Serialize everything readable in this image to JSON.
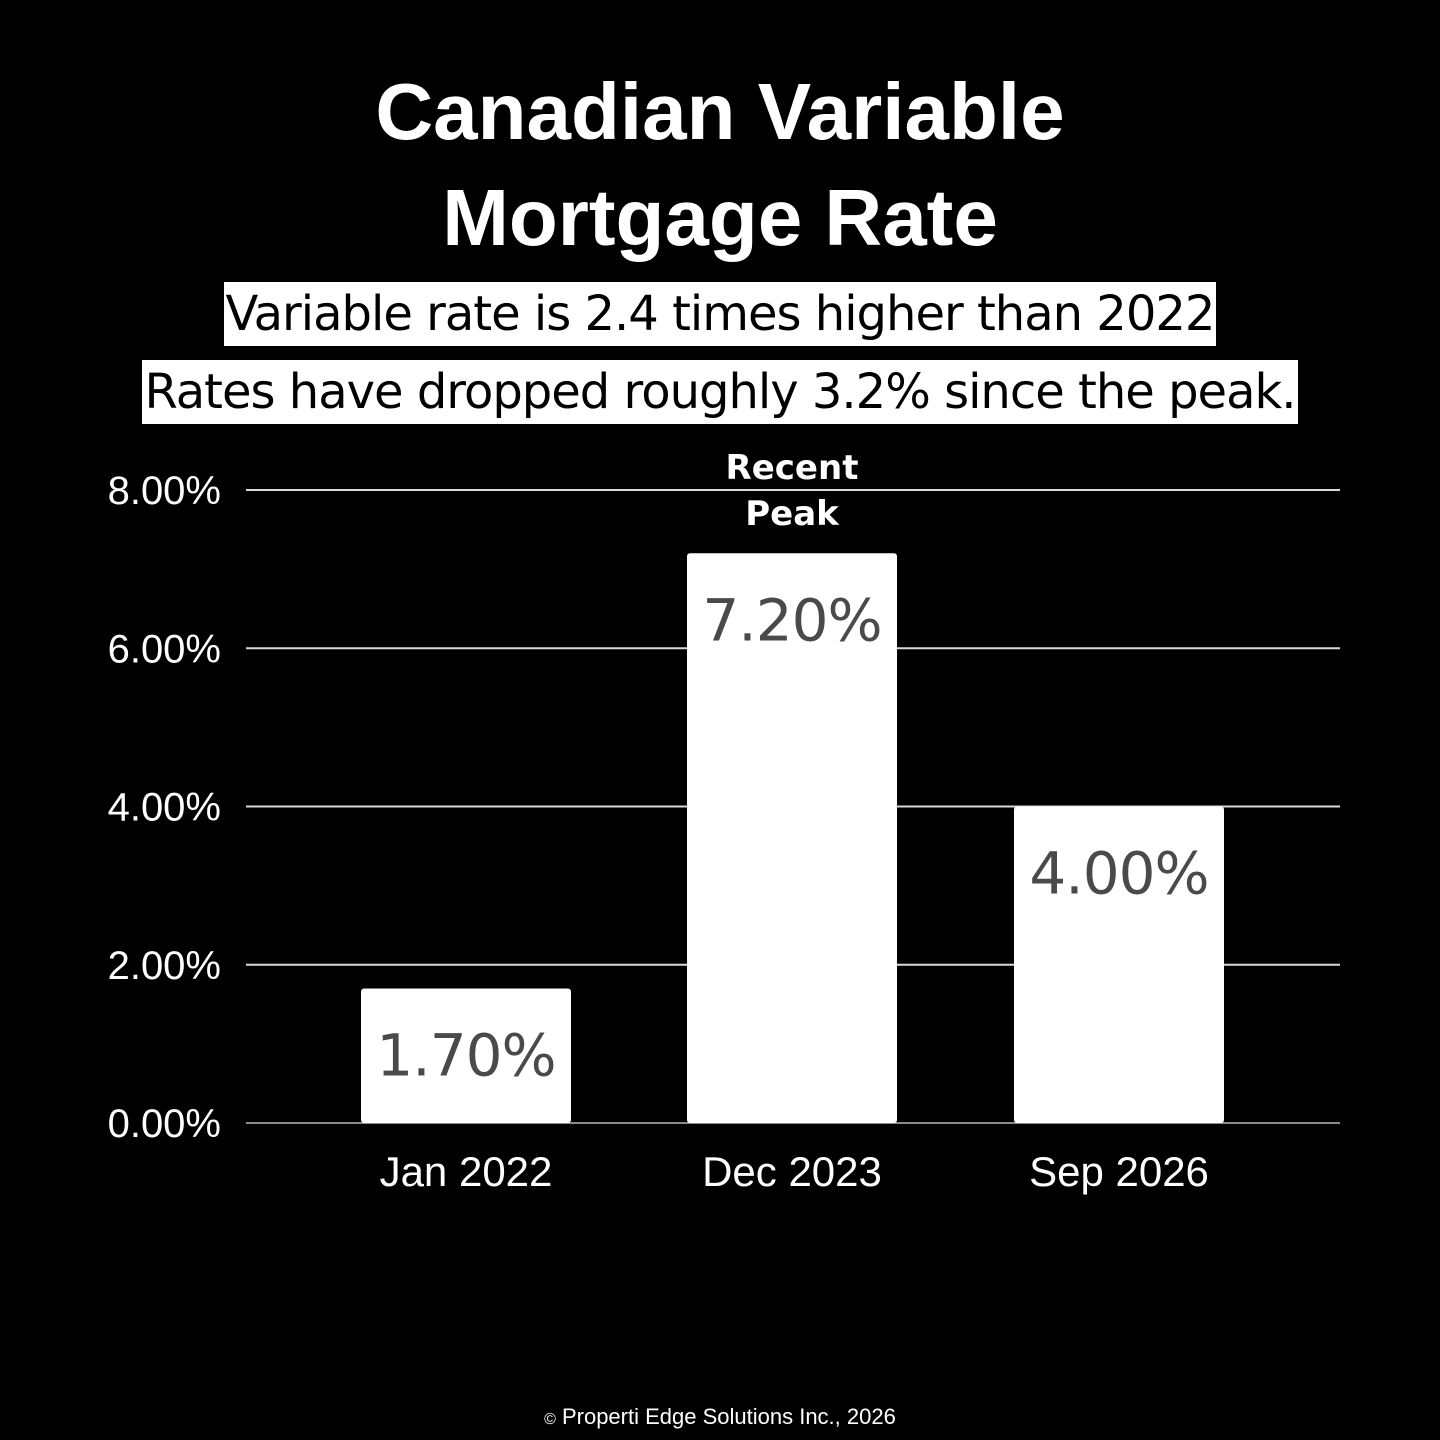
{
  "title_lines": [
    "Canadian Variable",
    "Mortgage Rate"
  ],
  "subtitles": [
    "Variable rate is 2.4 times higher than 2022",
    "Rates have dropped roughly 3.2% since the peak."
  ],
  "footer": {
    "copyright_symbol": "©",
    "text": "Properti Edge Solutions Inc., 2026"
  },
  "colors": {
    "background": "#000000",
    "bar": "#ffffff",
    "bar_label": "#4a4a4a",
    "gridline": "#d9d9d9",
    "text": "#ffffff"
  },
  "chart_data": {
    "type": "bar",
    "categories": [
      "Jan 2022",
      "Dec 2023",
      "Sep 2026"
    ],
    "values": [
      1.7,
      7.2,
      4.0
    ],
    "value_labels": [
      "1.70%",
      "7.20%",
      "4.00%"
    ],
    "ylim": [
      0,
      8
    ],
    "yticks": [
      "0.00%",
      "2.00%",
      "4.00%",
      "6.00%",
      "8.00%"
    ],
    "grid": true,
    "annotations": [
      {
        "category": "Dec 2023",
        "lines": [
          "Recent",
          "Peak"
        ]
      }
    ]
  }
}
